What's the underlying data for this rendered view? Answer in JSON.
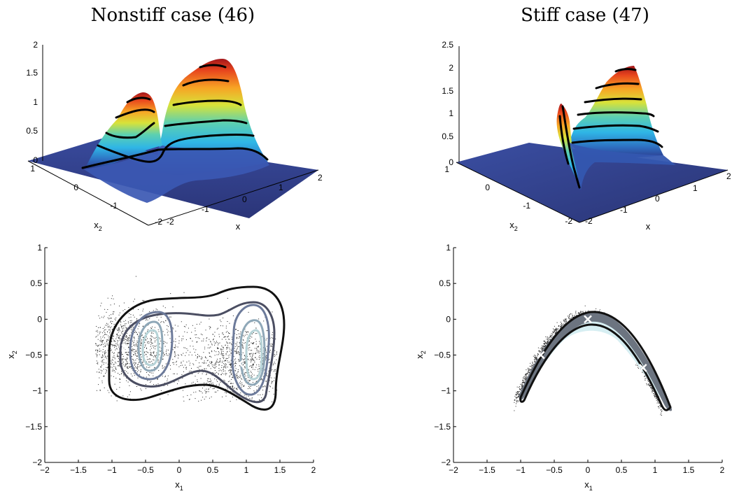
{
  "chart_data": [
    {
      "id": "p1",
      "type": "surface3d",
      "title": "Nonstiff case (46)",
      "zticks": [
        "0",
        "0.5",
        "1",
        "1.5",
        "2"
      ],
      "xticks_front": [
        "-2",
        "-1",
        "0",
        "1",
        "2"
      ],
      "yticks_left": [
        "-2",
        "-1",
        "0",
        "1"
      ],
      "xlabel": "x",
      "ylabel": "x",
      "ylabel_sub": "2"
    },
    {
      "id": "p2",
      "type": "surface3d",
      "title": "Stiff case (47)",
      "zticks": [
        "0",
        "0.5",
        "1",
        "1.5",
        "2",
        "2.5"
      ],
      "xticks_front": [
        "-2",
        "-1",
        "0",
        "1",
        "2"
      ],
      "yticks_left": [
        "-2",
        "-1",
        "0",
        "1"
      ],
      "xlabel": "x",
      "ylabel": "x",
      "ylabel_sub": "2"
    },
    {
      "id": "p3",
      "type": "scatter",
      "xlim": [
        -2,
        2
      ],
      "ylim": [
        -2,
        1
      ],
      "xticks": [
        "−2",
        "−1.5",
        "−1",
        "−0.5",
        "0",
        "0.5",
        "1",
        "1.5",
        "2"
      ],
      "yticks": [
        "−2",
        "−1.5",
        "−1",
        "−0.5",
        "0",
        "0.5",
        "1"
      ],
      "xlabel": "x",
      "xlabel_sub": "1",
      "ylabel": "x",
      "ylabel_sub": "2",
      "modes": [
        {
          "x": -0.8,
          "y": -0.4
        },
        {
          "x": 0.9,
          "y": -0.62
        }
      ]
    },
    {
      "id": "p4",
      "type": "scatter",
      "xlim": [
        -2,
        2
      ],
      "ylim": [
        -2,
        1
      ],
      "xticks": [
        "−2",
        "−1.5",
        "−1",
        "−0.5",
        "0",
        "0.5",
        "1",
        "1.5",
        "2"
      ],
      "yticks": [
        "−2",
        "−1.5",
        "−1",
        "−0.5",
        "0",
        "0.5",
        "1"
      ],
      "xlabel": "x",
      "xlabel_sub": "1",
      "ylabel": "x",
      "ylabel_sub": "2",
      "modes": [
        {
          "x": -0.7,
          "y": -0.5
        },
        {
          "x": 0,
          "y": 0
        },
        {
          "x": 0.82,
          "y": -0.68
        }
      ]
    }
  ]
}
